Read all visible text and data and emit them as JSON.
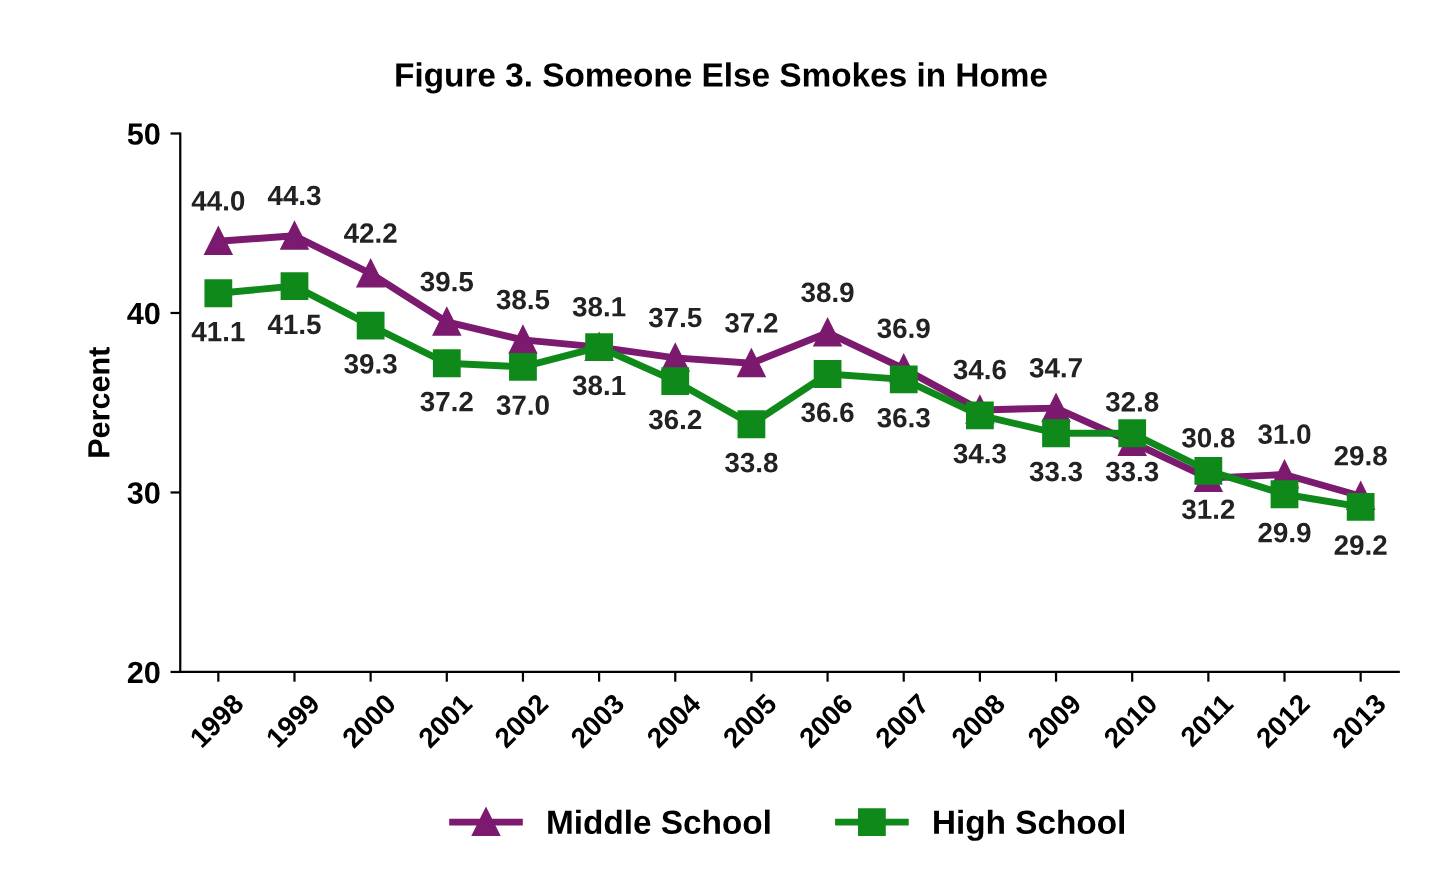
{
  "chart_data": {
    "type": "line",
    "title": "Figure 3. Someone Else Smokes in Home",
    "ylabel": "Percent",
    "categories": [
      "1998",
      "1999",
      "2000",
      "2001",
      "2002",
      "2003",
      "2004",
      "2005",
      "2006",
      "2007",
      "2008",
      "2009",
      "2010",
      "2011",
      "2012",
      "2013"
    ],
    "series": [
      {
        "name": "Middle School",
        "color": "#7b1a6e",
        "marker": "triangle",
        "values": [
          44.0,
          44.3,
          42.2,
          39.5,
          38.5,
          38.1,
          37.5,
          37.2,
          38.9,
          36.9,
          34.6,
          34.7,
          32.8,
          30.8,
          31.0,
          29.8
        ],
        "value_labels": [
          "44.0",
          "44.3",
          "42.2",
          "39.5",
          "38.5",
          "38.1",
          "37.5",
          "37.2",
          "38.9",
          "36.9",
          "34.6",
          "34.7",
          "32.8",
          "30.8",
          "31.0",
          "29.8"
        ]
      },
      {
        "name": "High School",
        "color": "#0f8a1a",
        "marker": "square",
        "values": [
          41.1,
          41.5,
          39.3,
          37.2,
          37.0,
          38.1,
          36.2,
          33.8,
          36.6,
          36.3,
          34.3,
          33.3,
          33.3,
          31.2,
          29.9,
          29.2
        ],
        "value_labels": [
          "41.1",
          "41.5",
          "39.3",
          "37.2",
          "37.0",
          "38.1",
          "36.2",
          "33.8",
          "36.6",
          "36.3",
          "34.3",
          "33.3",
          "33.3",
          "31.2",
          "29.9",
          "29.2"
        ]
      }
    ],
    "ylim": [
      20,
      50
    ],
    "yticks": [
      20,
      30,
      40,
      50
    ],
    "grid": false,
    "legend": "bottom",
    "line_style": "solid"
  }
}
